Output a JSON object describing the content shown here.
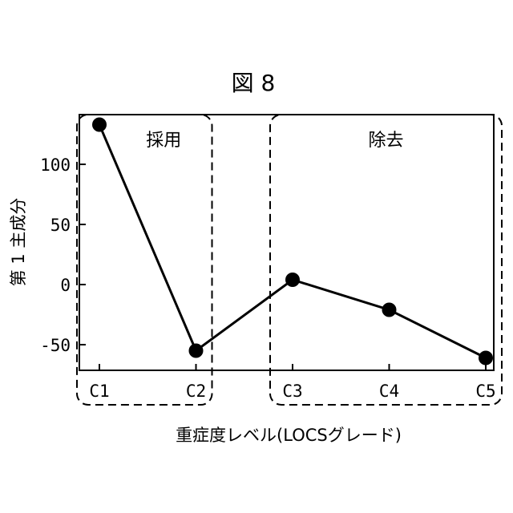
{
  "chart_data": {
    "type": "line",
    "title": "図 8",
    "xlabel": "重症度レベル(LOCSグレード)",
    "ylabel": "第 1 主成分",
    "categories": [
      "C1",
      "C2",
      "C3",
      "C4",
      "C5"
    ],
    "values": [
      133,
      -55,
      4,
      -21,
      -61
    ],
    "ylim": [
      -72,
      142
    ],
    "yticks": [
      -50,
      0,
      50,
      100
    ],
    "grid": false,
    "regions": [
      {
        "label": "採用",
        "categories": [
          "C1",
          "C2"
        ]
      },
      {
        "label": "除去",
        "categories": [
          "C3",
          "C4",
          "C5"
        ]
      }
    ],
    "colors": {
      "line": "#000000",
      "marker": "#000000",
      "region_border": "#000000"
    }
  }
}
